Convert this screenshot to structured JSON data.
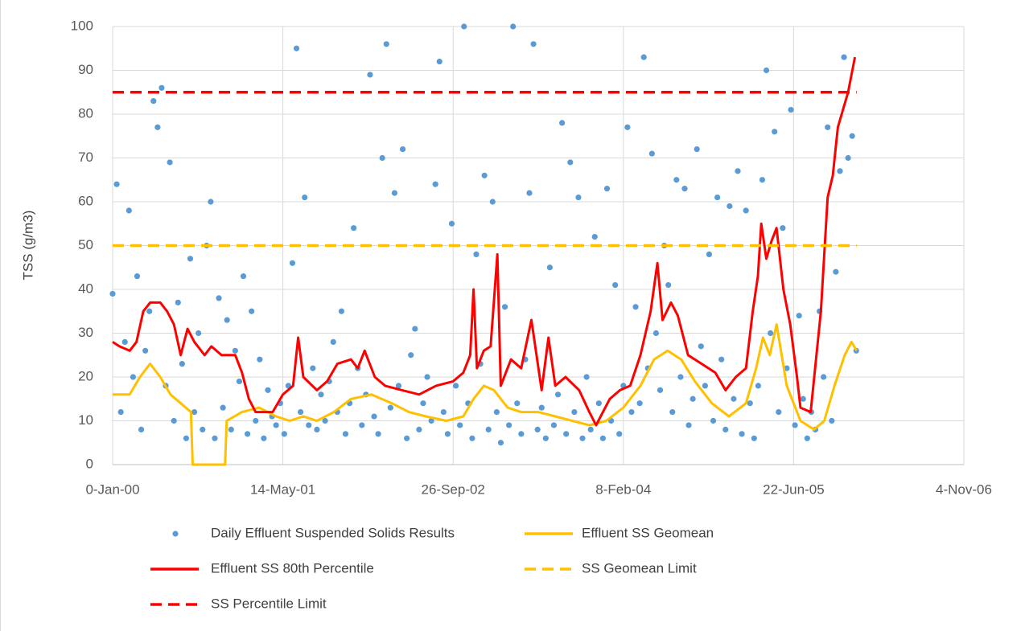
{
  "chart_data": {
    "type": "combo",
    "y_label": "TSS (g/m3)",
    "xlim": [
      0,
      2500
    ],
    "xticks": [
      {
        "value": 0,
        "label": "0-Jan-00"
      },
      {
        "value": 500,
        "label": "14-May-01"
      },
      {
        "value": 1000,
        "label": "26-Sep-02"
      },
      {
        "value": 1500,
        "label": "8-Feb-04"
      },
      {
        "value": 2000,
        "label": "22-Jun-05"
      },
      {
        "value": 2500,
        "label": "4-Nov-06"
      }
    ],
    "ylim": [
      0,
      100
    ],
    "yticks": [
      0,
      10,
      20,
      30,
      40,
      50,
      60,
      70,
      80,
      90,
      100
    ],
    "grid": true,
    "legend": "bottom",
    "series": [
      {
        "name": "Daily Effluent Suspended Solids Results",
        "type": "scatter",
        "color": "#5b9bd5",
        "x": [
          0,
          12,
          24,
          36,
          48,
          60,
          72,
          84,
          96,
          108,
          120,
          132,
          144,
          156,
          168,
          180,
          192,
          204,
          216,
          228,
          240,
          252,
          264,
          276,
          288,
          300,
          312,
          324,
          336,
          348,
          360,
          372,
          384,
          396,
          408,
          420,
          432,
          444,
          456,
          468,
          480,
          492,
          504,
          516,
          528,
          540,
          552,
          564,
          576,
          588,
          600,
          612,
          624,
          636,
          648,
          660,
          672,
          684,
          696,
          708,
          720,
          732,
          744,
          756,
          768,
          780,
          792,
          804,
          816,
          828,
          840,
          852,
          864,
          876,
          888,
          900,
          912,
          924,
          936,
          948,
          960,
          972,
          984,
          996,
          1008,
          1020,
          1032,
          1044,
          1056,
          1068,
          1080,
          1092,
          1104,
          1116,
          1128,
          1140,
          1152,
          1164,
          1176,
          1188,
          1200,
          1212,
          1224,
          1236,
          1248,
          1260,
          1272,
          1284,
          1296,
          1308,
          1320,
          1332,
          1344,
          1356,
          1368,
          1380,
          1392,
          1404,
          1416,
          1428,
          1440,
          1452,
          1464,
          1476,
          1488,
          1500,
          1512,
          1524,
          1536,
          1548,
          1560,
          1572,
          1584,
          1596,
          1608,
          1620,
          1632,
          1644,
          1656,
          1668,
          1680,
          1692,
          1704,
          1716,
          1728,
          1740,
          1752,
          1764,
          1776,
          1788,
          1800,
          1812,
          1824,
          1836,
          1848,
          1860,
          1872,
          1884,
          1896,
          1908,
          1920,
          1932,
          1944,
          1956,
          1968,
          1980,
          1992,
          2004,
          2016,
          2028,
          2040,
          2052,
          2064,
          2076,
          2088,
          2100,
          2112,
          2124,
          2136,
          2148,
          2160,
          2172,
          2184
        ],
        "values": [
          39,
          64,
          12,
          28,
          58,
          20,
          43,
          8,
          26,
          35,
          83,
          77,
          86,
          18,
          69,
          10,
          37,
          23,
          6,
          47,
          12,
          30,
          8,
          50,
          60,
          6,
          38,
          13,
          33,
          8,
          26,
          19,
          43,
          7,
          35,
          10,
          24,
          6,
          17,
          11,
          9,
          14,
          7,
          18,
          46,
          95,
          12,
          61,
          9,
          22,
          8,
          16,
          10,
          19,
          28,
          12,
          35,
          7,
          14,
          54,
          22,
          9,
          16,
          89,
          11,
          7,
          70,
          96,
          13,
          62,
          18,
          72,
          6,
          25,
          31,
          8,
          14,
          20,
          10,
          64,
          92,
          12,
          7,
          55,
          18,
          9,
          100,
          14,
          6,
          48,
          23,
          66,
          8,
          60,
          12,
          5,
          36,
          9,
          100,
          14,
          7,
          24,
          62,
          96,
          8,
          13,
          6,
          45,
          9,
          16,
          78,
          7,
          69,
          12,
          61,
          6,
          20,
          8,
          52,
          14,
          6,
          63,
          10,
          41,
          7,
          18,
          77,
          12,
          36,
          14,
          93,
          22,
          71,
          30,
          17,
          50,
          41,
          12,
          65,
          20,
          63,
          9,
          15,
          72,
          27,
          18,
          48,
          10,
          61,
          24,
          8,
          59,
          15,
          67,
          7,
          58,
          14,
          6,
          18,
          65,
          90,
          30,
          76,
          12,
          54,
          22,
          81,
          9,
          34,
          15,
          6,
          12,
          8,
          35,
          20,
          77,
          10,
          44,
          67,
          93,
          70,
          75,
          26
        ]
      },
      {
        "name": "Effluent SS Geomean",
        "type": "line",
        "color": "#ffc000",
        "x": [
          0,
          50,
          80,
          110,
          140,
          170,
          200,
          230,
          235,
          330,
          335,
          380,
          430,
          480,
          520,
          560,
          600,
          650,
          700,
          760,
          820,
          870,
          920,
          980,
          1030,
          1060,
          1090,
          1120,
          1160,
          1200,
          1250,
          1300,
          1350,
          1400,
          1450,
          1500,
          1550,
          1590,
          1630,
          1670,
          1710,
          1760,
          1810,
          1860,
          1890,
          1910,
          1930,
          1950,
          1980,
          2020,
          2060,
          2090,
          2120,
          2150,
          2170,
          2185
        ],
        "values": [
          16,
          16,
          20,
          23,
          20,
          16,
          14,
          12,
          0,
          0,
          10,
          12,
          13,
          11,
          10,
          11,
          10,
          12,
          15,
          16,
          14,
          12,
          11,
          10,
          11,
          15,
          18,
          17,
          13,
          12,
          12,
          11,
          10,
          9,
          10,
          13,
          18,
          24,
          26,
          24,
          19,
          14,
          11,
          14,
          22,
          29,
          25,
          32,
          18,
          10,
          8,
          10,
          18,
          25,
          28,
          26
        ]
      },
      {
        "name": "Effluent SS 80th Percentile",
        "type": "line",
        "color": "#ff0000",
        "x": [
          0,
          20,
          50,
          70,
          90,
          110,
          140,
          160,
          180,
          200,
          220,
          240,
          270,
          290,
          320,
          360,
          380,
          400,
          420,
          470,
          500,
          530,
          545,
          560,
          600,
          630,
          660,
          700,
          720,
          740,
          770,
          800,
          850,
          900,
          950,
          1000,
          1030,
          1050,
          1060,
          1070,
          1090,
          1110,
          1130,
          1140,
          1170,
          1200,
          1230,
          1260,
          1280,
          1300,
          1330,
          1370,
          1400,
          1420,
          1440,
          1460,
          1490,
          1520,
          1550,
          1580,
          1600,
          1615,
          1640,
          1660,
          1690,
          1730,
          1770,
          1800,
          1830,
          1860,
          1880,
          1895,
          1905,
          1920,
          1935,
          1950,
          1970,
          1990,
          2010,
          2020,
          2050,
          2080,
          2100,
          2115,
          2130,
          2160,
          2180
        ],
        "values": [
          28,
          27,
          26,
          28,
          35,
          37,
          37,
          35,
          32,
          25,
          31,
          28,
          25,
          27,
          25,
          25,
          21,
          15,
          12,
          12,
          16,
          18,
          29,
          20,
          17,
          19,
          23,
          24,
          22,
          26,
          20,
          18,
          17,
          16,
          18,
          19,
          21,
          25,
          40,
          22,
          26,
          27,
          48,
          18,
          24,
          22,
          33,
          17,
          29,
          18,
          20,
          17,
          12,
          9,
          12,
          15,
          17,
          18,
          25,
          35,
          46,
          33,
          37,
          34,
          25,
          23,
          21,
          17,
          20,
          22,
          35,
          43,
          55,
          47,
          51,
          54,
          40,
          32,
          20,
          13,
          12,
          35,
          61,
          66,
          77,
          85,
          93
        ]
      },
      {
        "name": "SS Geomean Limit",
        "type": "line",
        "dash": true,
        "color": "#ffc000",
        "x": [
          0,
          2185
        ],
        "values": [
          50,
          50
        ]
      },
      {
        "name": "SS Percentile Limit",
        "type": "line",
        "dash": true,
        "color": "#ff0000",
        "x": [
          0,
          2185
        ],
        "values": [
          85,
          85
        ]
      }
    ]
  }
}
